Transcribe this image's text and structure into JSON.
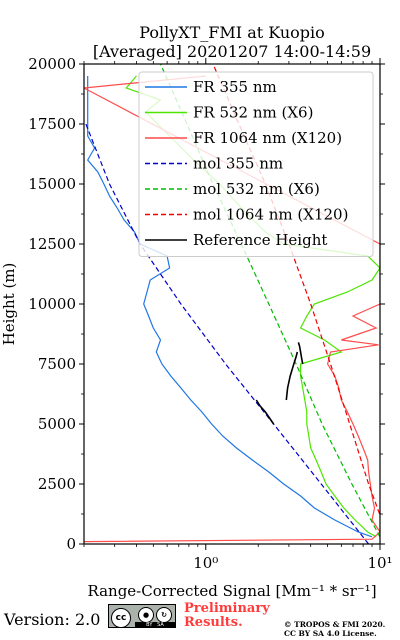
{
  "chart_data": {
    "type": "line",
    "title": "PollyXT_FMI at Kuopio",
    "subtitle": "[Averaged] 20201207 14:00-14:59",
    "xlabel": "Range-Corrected Signal [Mm⁻¹ * sr⁻¹]",
    "ylabel": "Height (m)",
    "xscale": "log",
    "xlim": [
      0.2,
      10
    ],
    "ylim": [
      0,
      20000
    ],
    "x_ticks": [
      {
        "value": 1,
        "label": "10⁰"
      },
      {
        "value": 10,
        "label": "10¹"
      }
    ],
    "y_ticks": [
      0,
      2500,
      5000,
      7500,
      10000,
      12500,
      15000,
      17500,
      20000
    ],
    "y_tick_labels": [
      "0",
      "2500",
      "5000",
      "7500",
      "10000",
      "12500",
      "15000",
      "17500",
      "20000"
    ],
    "grid": false,
    "legend_position": "top-right",
    "series": [
      {
        "name": "FR 355 nm",
        "color": "#1f77e4",
        "style": "solid",
        "y": [
          300,
          500,
          1000,
          1500,
          2000,
          2500,
          3000,
          3500,
          4000,
          4500,
          5000,
          5500,
          6000,
          6500,
          7000,
          7500,
          8000,
          8500,
          9000,
          9500,
          10000,
          10500,
          11000,
          11500,
          12000,
          12500,
          13000,
          13500,
          14000,
          14500,
          15000,
          15500,
          16000,
          16500,
          17000,
          17500,
          18000,
          18500,
          19000,
          19500
        ],
        "x": [
          9.0,
          7.5,
          5.5,
          4.2,
          3.5,
          2.8,
          2.3,
          1.85,
          1.5,
          1.25,
          1.08,
          0.95,
          0.82,
          0.72,
          0.63,
          0.56,
          0.52,
          0.55,
          0.5,
          0.47,
          0.44,
          0.46,
          0.48,
          0.62,
          0.6,
          0.42,
          0.39,
          0.34,
          0.31,
          0.28,
          0.26,
          0.24,
          0.21,
          0.23,
          0.21,
          0.21,
          0.21,
          0.21,
          0.21,
          0.21
        ]
      },
      {
        "name": "FR 532 nm (X6)",
        "color": "#4ce600",
        "style": "solid",
        "y": [
          300,
          500,
          1000,
          1500,
          2000,
          2500,
          3000,
          3500,
          4000,
          4500,
          5000,
          5500,
          6000,
          6500,
          7000,
          7500,
          8000,
          8500,
          9000,
          9500,
          10000,
          10500,
          11000,
          11500,
          12000,
          12500,
          13000,
          14000,
          15000,
          16000,
          17000,
          18000,
          18500,
          19000,
          19500
        ],
        "x": [
          9.5,
          8.5,
          7.2,
          6.2,
          5.5,
          4.9,
          4.6,
          4.3,
          4.0,
          3.9,
          3.8,
          3.8,
          3.7,
          3.6,
          3.5,
          3.5,
          6.0,
          4.8,
          3.5,
          3.8,
          4.2,
          6.5,
          9.0,
          10.0,
          8.5,
          2.8,
          2.2,
          1.6,
          1.2,
          0.85,
          0.62,
          0.45,
          0.55,
          0.35,
          0.4
        ]
      },
      {
        "name": "FR 1064 nm (X120)",
        "color": "#ff4c4c",
        "style": "solid",
        "y": [
          100,
          200,
          500,
          1000,
          1500,
          2000,
          2500,
          3000,
          3500,
          4000,
          4500,
          5000,
          5500,
          6000,
          6500,
          7000,
          7500,
          8000,
          8300,
          8500,
          9000,
          9500,
          10000,
          12500,
          19000,
          19500
        ],
        "x": [
          0.2,
          9.0,
          10.0,
          9.0,
          9.3,
          9.0,
          8.8,
          8.6,
          8.5,
          8.0,
          7.5,
          7.0,
          6.5,
          6.0,
          5.8,
          5.5,
          5.0,
          5.2,
          9.8,
          6.0,
          9.5,
          7.0,
          10.0,
          10.0,
          0.2,
          1.0
        ]
      },
      {
        "name": "mol 355 nm",
        "color": "#0000cc",
        "style": "dashed",
        "y": [
          0,
          2500,
          5000,
          7500,
          10000,
          12500,
          15000,
          17500
        ],
        "x": [
          8.6,
          4.6,
          2.45,
          1.3,
          0.72,
          0.42,
          0.28,
          0.205
        ]
      },
      {
        "name": "mol 532 nm (X6)",
        "color": "#00bb00",
        "style": "dashed",
        "y": [
          0,
          2500,
          5000,
          7500,
          10000,
          12500,
          15000,
          17500,
          20000
        ],
        "x": [
          10.5,
          6.9,
          4.65,
          3.3,
          2.3,
          1.6,
          1.1,
          0.78,
          0.55
        ]
      },
      {
        "name": "mol 1064 nm (X120)",
        "color": "#ee0000",
        "style": "dashed",
        "y": [
          0,
          2500,
          5000,
          7500,
          10000,
          12500,
          15000,
          17500,
          20000
        ],
        "x": [
          11.5,
          8.6,
          6.7,
          5.2,
          4.0,
          3.0,
          2.2,
          1.55,
          1.1
        ]
      },
      {
        "name": "Reference Height",
        "color": "#000000",
        "style": "solid",
        "y": [
          5000,
          5250,
          5500,
          5750,
          6000,
          7500,
          7750,
          8000,
          8250,
          8400,
          6000,
          6500,
          7000,
          7500,
          7800,
          8000
        ],
        "x": [
          2.45,
          2.32,
          2.2,
          2.05,
          1.95,
          3.6,
          3.55,
          3.5,
          3.45,
          3.4,
          2.9,
          2.95,
          3.05,
          3.2,
          3.3,
          3.35
        ],
        "segments": [
          [
            0,
            5
          ],
          [
            5,
            10
          ],
          [
            10,
            16
          ]
        ]
      }
    ]
  },
  "footer": {
    "version": "Version: 2.0",
    "cc_by": "BY",
    "cc_sa": "SA",
    "preliminary_line1": "Preliminary",
    "preliminary_line2": "Results.",
    "copyright_line1": "© TROPOS & FMI 2020.",
    "copyright_line2": "CC BY SA 4.0 License."
  }
}
